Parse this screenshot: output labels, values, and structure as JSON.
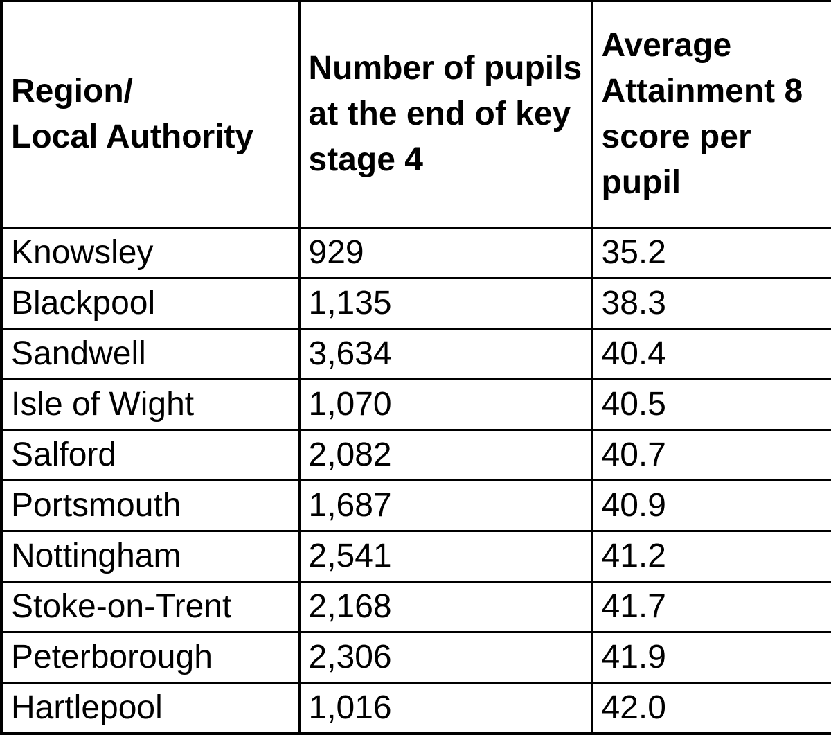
{
  "chart_data": {
    "type": "table",
    "title": "",
    "columns": [
      "Region/\nLocal Authority",
      "Number of pupils\nat the end of key\nstage 4",
      "Average\nAttainment 8\nscore per\npupil"
    ],
    "rows": [
      [
        "Knowsley",
        "929",
        "35.2"
      ],
      [
        "Blackpool",
        "1,135",
        "38.3"
      ],
      [
        "Sandwell",
        "3,634",
        "40.4"
      ],
      [
        "Isle of Wight",
        "1,070",
        "40.5"
      ],
      [
        "Salford",
        "2,082",
        "40.7"
      ],
      [
        "Portsmouth",
        "1,687",
        "40.9"
      ],
      [
        "Nottingham",
        "2,541",
        "41.2"
      ],
      [
        "Stoke-on-Trent",
        "2,168",
        "41.7"
      ],
      [
        "Peterborough",
        "2,306",
        "41.9"
      ],
      [
        "Hartlepool",
        "1,016",
        "42.0"
      ]
    ],
    "colors": {
      "grid_border": "#000000",
      "top_edge": "#9a9a9a",
      "background": "#ffffff",
      "text": "#000000"
    }
  }
}
